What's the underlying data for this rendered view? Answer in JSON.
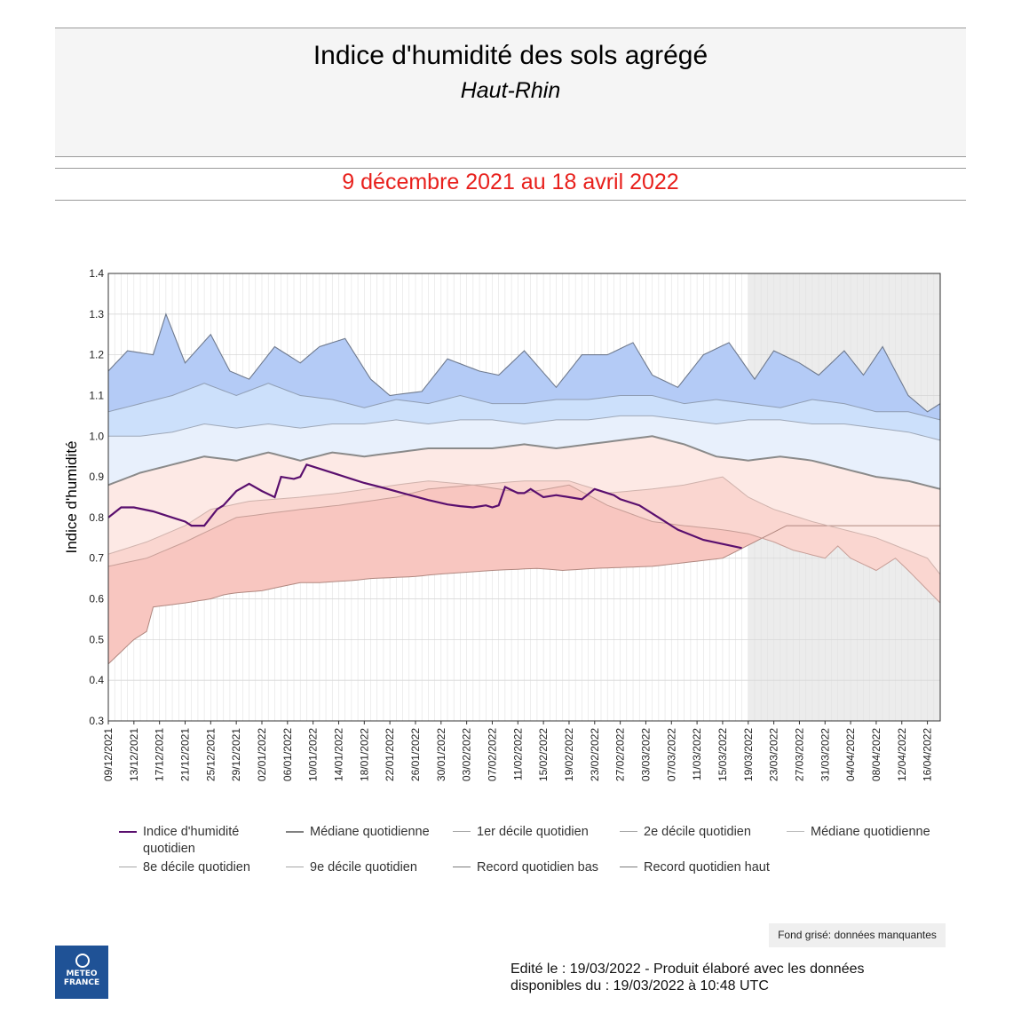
{
  "header": {
    "title": "Indice d'humidité des sols agrégé",
    "subtitle": "Haut-Rhin",
    "period": "9 décembre 2021 au 18 avril 2022"
  },
  "colors": {
    "index_line": "#5a0f6e",
    "band_low_record": "#f8c6c0",
    "band_d1": "#fad6d0",
    "band_d2": "#fde9e5",
    "band_d8": "#e8f0fc",
    "band_d9": "#cce0fb",
    "band_high_record": "#b4cbf6",
    "median_line": "#8a8a8a",
    "missing_background": "#ececec",
    "period_red": "#e8201c"
  },
  "chart_data": {
    "type": "area",
    "ylabel": "Indice d'humidité",
    "xlabel": "",
    "ylim": [
      0.3,
      1.4
    ],
    "yticks": [
      "0.3",
      "0.4",
      "0.5",
      "0.6",
      "0.7",
      "0.8",
      "0.9",
      "1.0",
      "1.1",
      "1.2",
      "1.3",
      "1.4"
    ],
    "n_days": 131,
    "x_start": "09/12/2021",
    "x_end": "18/04/2022",
    "missing_data_from_day": 100,
    "xtick_labels": [
      "09/12/2021",
      "13/12/2021",
      "17/12/2021",
      "21/12/2021",
      "25/12/2021",
      "29/12/2021",
      "02/01/2022",
      "06/01/2022",
      "10/01/2022",
      "14/01/2022",
      "18/01/2022",
      "22/01/2022",
      "26/01/2022",
      "30/01/2022",
      "03/02/2022",
      "07/02/2022",
      "11/02/2022",
      "15/02/2022",
      "19/02/2022",
      "23/02/2022",
      "27/02/2022",
      "03/03/2022",
      "07/03/2022",
      "11/03/2022",
      "15/03/2022",
      "19/03/2022",
      "23/03/2022",
      "27/03/2022",
      "31/03/2022",
      "04/04/2022",
      "08/04/2022",
      "12/04/2022",
      "16/04/2022"
    ],
    "xtick_step_days": 4,
    "series": [
      {
        "name": "Record quotidien bas",
        "days": [
          0,
          4,
          6,
          7,
          12,
          16,
          18,
          20,
          24,
          30,
          33,
          38,
          41,
          48,
          51,
          60,
          67,
          71,
          76,
          85,
          96,
          106
        ],
        "values": [
          0.44,
          0.5,
          0.52,
          0.58,
          0.59,
          0.6,
          0.61,
          0.615,
          0.62,
          0.64,
          0.64,
          0.645,
          0.65,
          0.655,
          0.66,
          0.67,
          0.675,
          0.67,
          0.675,
          0.68,
          0.7,
          0.78
        ]
      },
      {
        "name": "1er décile quotidien",
        "days": [
          0,
          6,
          12,
          16,
          20,
          30,
          36,
          45,
          50,
          57,
          65,
          72,
          78,
          85,
          90,
          96,
          100,
          104,
          107,
          112,
          114,
          116,
          120,
          123,
          125,
          130
        ],
        "values": [
          0.68,
          0.7,
          0.74,
          0.77,
          0.8,
          0.82,
          0.83,
          0.85,
          0.87,
          0.88,
          0.86,
          0.88,
          0.83,
          0.79,
          0.78,
          0.77,
          0.76,
          0.74,
          0.72,
          0.7,
          0.73,
          0.7,
          0.67,
          0.7,
          0.67,
          0.59
        ]
      },
      {
        "name": "2e décile quotidien",
        "days": [
          0,
          6,
          12,
          16,
          22,
          30,
          36,
          45,
          50,
          57,
          65,
          72,
          78,
          85,
          90,
          96,
          100,
          104,
          110,
          120,
          128,
          130
        ],
        "values": [
          0.71,
          0.74,
          0.78,
          0.82,
          0.84,
          0.85,
          0.86,
          0.88,
          0.89,
          0.88,
          0.89,
          0.89,
          0.86,
          0.87,
          0.88,
          0.9,
          0.85,
          0.82,
          0.79,
          0.75,
          0.7,
          0.66
        ]
      },
      {
        "name": "Médiane quotidienne",
        "days": [
          0,
          5,
          10,
          15,
          20,
          25,
          30,
          35,
          40,
          45,
          50,
          55,
          60,
          65,
          70,
          75,
          80,
          85,
          90,
          95,
          100,
          105,
          110,
          115,
          120,
          125,
          130
        ],
        "values": [
          0.88,
          0.91,
          0.93,
          0.95,
          0.94,
          0.96,
          0.94,
          0.96,
          0.95,
          0.96,
          0.97,
          0.97,
          0.97,
          0.98,
          0.97,
          0.98,
          0.99,
          1.0,
          0.98,
          0.95,
          0.94,
          0.95,
          0.94,
          0.92,
          0.9,
          0.89,
          0.87
        ]
      },
      {
        "name": "8e décile quotidien",
        "days": [
          0,
          5,
          10,
          15,
          20,
          25,
          30,
          35,
          40,
          45,
          50,
          55,
          60,
          65,
          70,
          75,
          80,
          85,
          90,
          95,
          100,
          105,
          110,
          115,
          120,
          125,
          130
        ],
        "values": [
          1.0,
          1.0,
          1.01,
          1.03,
          1.02,
          1.03,
          1.02,
          1.03,
          1.03,
          1.04,
          1.03,
          1.04,
          1.04,
          1.03,
          1.04,
          1.04,
          1.05,
          1.05,
          1.04,
          1.03,
          1.04,
          1.04,
          1.03,
          1.03,
          1.02,
          1.01,
          0.99
        ]
      },
      {
        "name": "9e décile quotidien",
        "days": [
          0,
          5,
          10,
          15,
          20,
          25,
          30,
          35,
          40,
          45,
          50,
          55,
          60,
          65,
          70,
          75,
          80,
          85,
          90,
          95,
          100,
          105,
          110,
          115,
          120,
          125,
          130
        ],
        "values": [
          1.06,
          1.08,
          1.1,
          1.13,
          1.1,
          1.13,
          1.1,
          1.09,
          1.07,
          1.09,
          1.08,
          1.1,
          1.08,
          1.08,
          1.09,
          1.09,
          1.1,
          1.1,
          1.08,
          1.09,
          1.08,
          1.07,
          1.09,
          1.08,
          1.06,
          1.06,
          1.04
        ]
      },
      {
        "name": "Record quotidien haut",
        "days": [
          0,
          3,
          7,
          9,
          12,
          16,
          19,
          22,
          26,
          30,
          33,
          37,
          41,
          44,
          49,
          53,
          58,
          61,
          65,
          70,
          74,
          78,
          82,
          85,
          89,
          93,
          97,
          101,
          104,
          108,
          111,
          115,
          118,
          121,
          125,
          128,
          130
        ],
        "values": [
          1.16,
          1.21,
          1.2,
          1.3,
          1.18,
          1.25,
          1.16,
          1.14,
          1.22,
          1.18,
          1.22,
          1.24,
          1.14,
          1.1,
          1.11,
          1.19,
          1.16,
          1.15,
          1.21,
          1.12,
          1.2,
          1.2,
          1.23,
          1.15,
          1.12,
          1.2,
          1.23,
          1.14,
          1.21,
          1.18,
          1.15,
          1.21,
          1.15,
          1.22,
          1.1,
          1.06,
          1.08
        ]
      },
      {
        "name": "Indice d'humidité quotidien",
        "days": [
          0,
          2,
          4,
          7,
          10,
          12,
          13,
          15,
          17,
          18,
          20,
          22,
          24,
          26,
          27,
          29,
          30,
          31,
          34,
          38,
          40,
          43,
          46,
          50,
          53,
          55,
          57,
          59,
          60,
          61,
          62,
          64,
          65,
          66,
          68,
          70,
          72,
          74,
          76,
          78,
          79,
          80,
          83,
          86,
          89,
          93,
          96,
          99
        ],
        "values": [
          0.8,
          0.825,
          0.825,
          0.815,
          0.8,
          0.79,
          0.78,
          0.78,
          0.82,
          0.83,
          0.865,
          0.883,
          0.865,
          0.85,
          0.9,
          0.895,
          0.9,
          0.93,
          0.915,
          0.895,
          0.885,
          0.873,
          0.86,
          0.843,
          0.832,
          0.828,
          0.825,
          0.83,
          0.825,
          0.83,
          0.875,
          0.86,
          0.86,
          0.87,
          0.85,
          0.855,
          0.85,
          0.845,
          0.87,
          0.86,
          0.855,
          0.845,
          0.83,
          0.8,
          0.77,
          0.745,
          0.735,
          0.725
        ]
      }
    ],
    "legend": [
      {
        "label": "Indice d'humidité quotidien",
        "color": "#5a0f6e"
      },
      {
        "label": "Médiane quotidienne",
        "color": "#808080"
      },
      {
        "label": "1er décile quotidien",
        "color": "#a5a5a5"
      },
      {
        "label": "2e décile quotidien",
        "color": "#a5a5a5"
      },
      {
        "label": "Médiane quotidienne",
        "color": "#bbbbbb"
      },
      {
        "label": "8e décile quotidien",
        "color": "#a5a5a5"
      },
      {
        "label": "9e décile quotidien",
        "color": "#a5a5a5"
      },
      {
        "label": "Record quotidien bas",
        "color": "#7a7a7a"
      },
      {
        "label": "Record quotidien haut",
        "color": "#7a7a7a"
      }
    ],
    "missing_note": "Fond grisé: données manquantes"
  },
  "footer": {
    "logo_line1": "METEO",
    "logo_line2": "FRANCE",
    "edited": "Edité le : 19/03/2022 - Produit élaboré avec les données disponibles du : 19/03/2022 à 10:48 UTC"
  }
}
